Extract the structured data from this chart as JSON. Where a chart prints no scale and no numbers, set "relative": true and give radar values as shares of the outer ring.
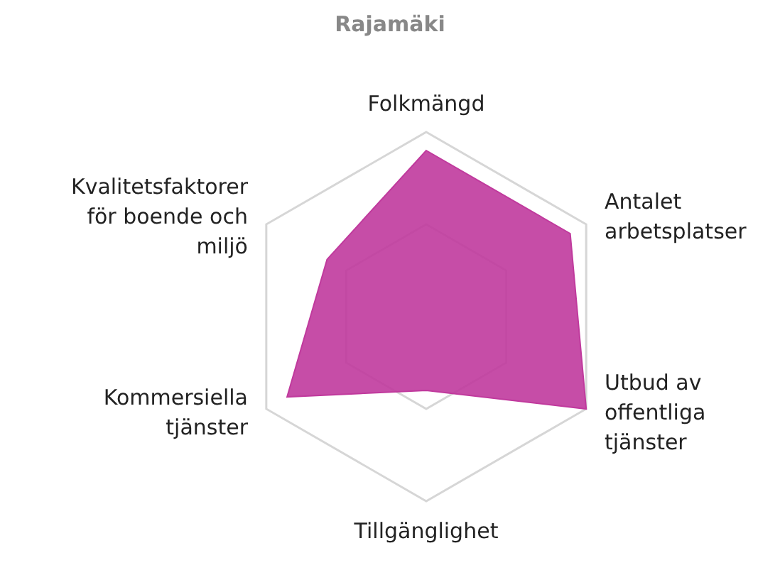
{
  "chart_data": {
    "type": "radar",
    "title": "Rajamäki",
    "relative": true,
    "grid": true,
    "categories": [
      "Folkmängd",
      "Antalet arbetsplatser",
      "Utbud av offentliga tjänster",
      "Tillgänglighet",
      "Kommersiella tjänster",
      "Kvalitetsfaktorer för boende och miljö"
    ],
    "series": [
      {
        "color": "#c03a9d",
        "values": [
          0.9,
          0.9,
          1.0,
          0.4,
          0.87,
          0.62
        ]
      }
    ]
  }
}
